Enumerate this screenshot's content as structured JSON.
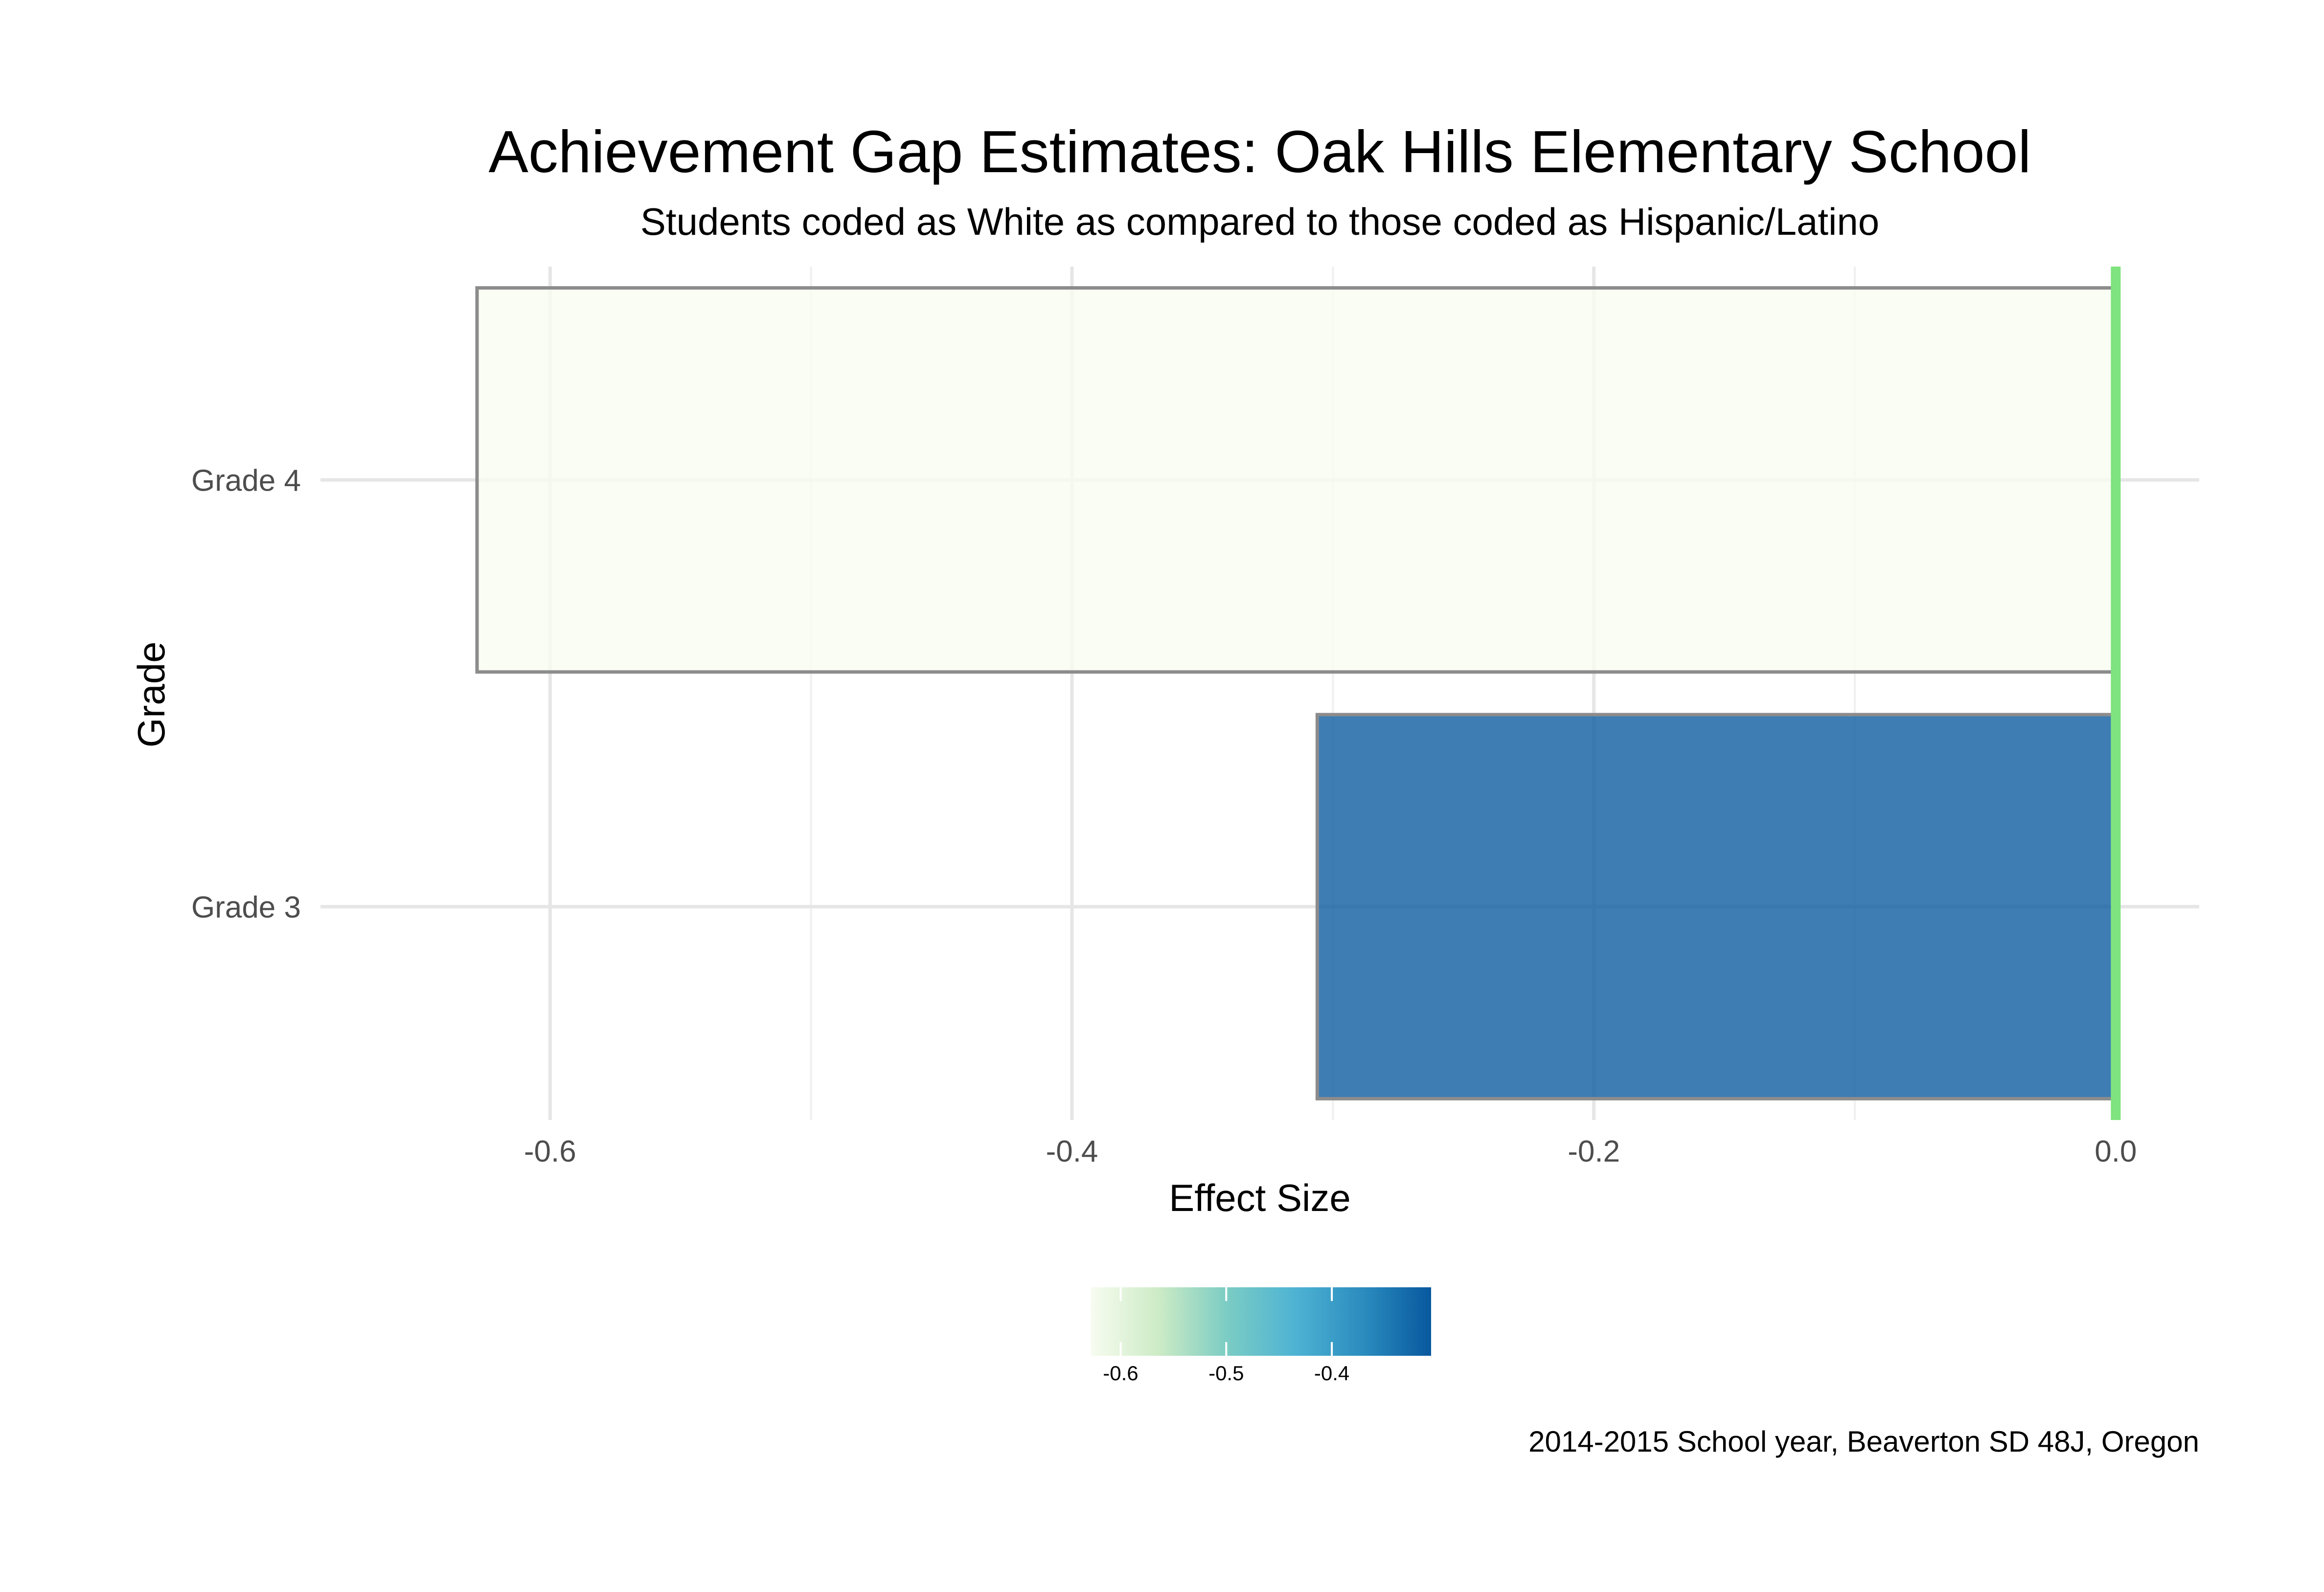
{
  "chart_data": {
    "type": "bar",
    "orientation": "horizontal",
    "title": "Achievement Gap Estimates: Oak Hills Elementary School",
    "subtitle": "Students coded as White as compared to those coded as Hispanic/Latino",
    "xlabel": "Effect Size",
    "ylabel": "Grade",
    "caption": "2014-2015 School year, Beaverton SD 48J, Oregon",
    "categories": [
      "Grade 3",
      "Grade 4"
    ],
    "values": [
      -0.306,
      -0.628
    ],
    "xlim": [
      -0.688,
      0.032
    ],
    "x_ticks": [
      -0.6,
      -0.4,
      -0.2,
      0.0
    ],
    "x_tick_labels": [
      "-0.6",
      "-0.4",
      "-0.2",
      "0.0"
    ],
    "reference_line": {
      "x": 0.0,
      "color": "#7fe37f"
    },
    "grid": true,
    "bar_fill_scale": "GnBu",
    "bar_outline_color": "#8c8c8c",
    "legend": {
      "position": "bottom",
      "type": "colorbar",
      "range": [
        -0.628,
        -0.306
      ],
      "ticks": [
        -0.6,
        -0.5,
        -0.4
      ],
      "tick_labels": [
        "-0.6",
        "-0.5",
        "-0.4"
      ],
      "colors": [
        "#f7fcf0",
        "#ccebc5",
        "#7bccc4",
        "#4eb3d3",
        "#2b8cbe",
        "#08589e"
      ]
    }
  }
}
